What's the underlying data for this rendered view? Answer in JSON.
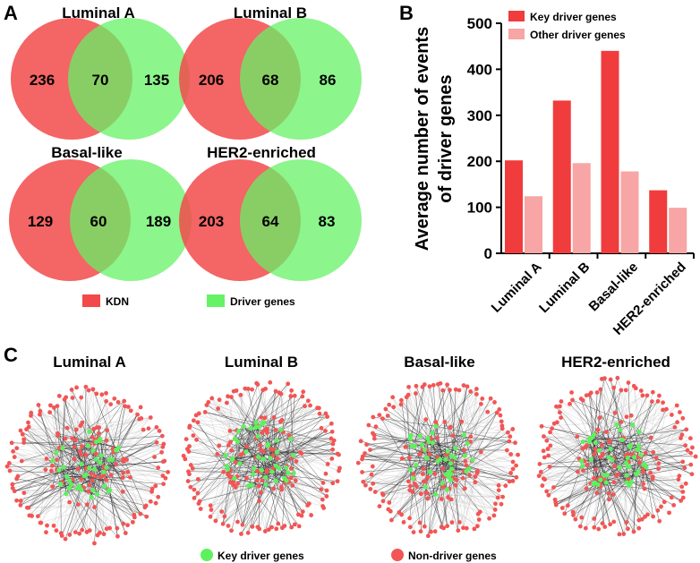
{
  "panels": {
    "a_label": "A",
    "b_label": "B",
    "c_label": "C"
  },
  "venn": {
    "colors": {
      "kdn": "#f24a4a",
      "driver": "#66f266"
    },
    "diagrams": [
      {
        "title": "Luminal A",
        "left": "236",
        "overlap": "70",
        "right": "135"
      },
      {
        "title": "Luminal B",
        "left": "206",
        "overlap": "68",
        "right": "86"
      },
      {
        "title": "Basal-like",
        "left": "129",
        "overlap": "60",
        "right": "189"
      },
      {
        "title": "HER2-enriched",
        "left": "203",
        "overlap": "64",
        "right": "83"
      }
    ],
    "legend": {
      "kdn": "KDN",
      "driver": "Driver genes"
    }
  },
  "chart_data": {
    "type": "bar",
    "title": "",
    "ylabel": "Average number of events of driver genes",
    "ylabel_lines": [
      "Average number of events",
      "of driver genes"
    ],
    "xlabel": "",
    "categories": [
      "Luminal A",
      "Luminal B",
      "Basal-like",
      "HER2-enriched"
    ],
    "series": [
      {
        "name": "Key driver genes",
        "color": "#f03c3c",
        "values": [
          202,
          332,
          440,
          137
        ]
      },
      {
        "name": "Other driver genes",
        "color": "#f7a5a5",
        "values": [
          124,
          196,
          178,
          99
        ]
      }
    ],
    "ylim": [
      0,
      500
    ],
    "yticks": [
      0,
      100,
      200,
      300,
      400,
      500
    ],
    "legend_position": "top"
  },
  "networks": {
    "titles": [
      "Luminal A",
      "Luminal B",
      "Basal-like",
      "HER2-enriched"
    ],
    "colors": {
      "key": "#5ef15e",
      "nondriver": "#f25555",
      "edge": "#b8b8b8",
      "edge_dark": "#2e2e2e"
    },
    "legend": {
      "key": "Key driver genes",
      "nondriver": "Non-driver genes"
    }
  }
}
